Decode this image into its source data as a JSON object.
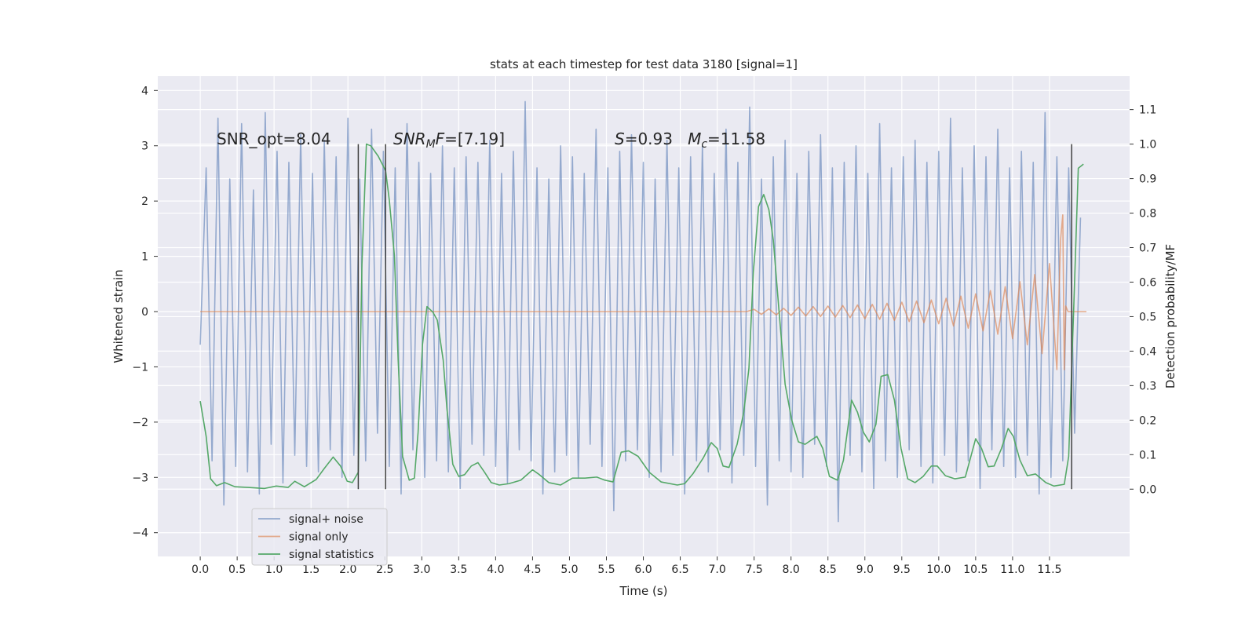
{
  "chart_data": {
    "type": "line",
    "title": "stats at each timestep for test data 3180 [signal=1]",
    "xlabel": "Time (s)",
    "ylabel": "Whitened strain",
    "y2label": "Detection probability/MF",
    "xlim": [
      -0.575,
      12.585
    ],
    "ylim": [
      -4.43,
      4.26
    ],
    "y2lim": [
      -0.195,
      1.197
    ],
    "xticks": [
      {
        "value": 0,
        "label": "0.0"
      },
      0.5,
      {
        "value": 1,
        "label": "1.0"
      },
      1.5,
      {
        "value": 2,
        "label": "2.0"
      },
      2.5,
      {
        "value": 3,
        "label": "3.0"
      },
      3.5,
      {
        "value": 4,
        "label": "4.0"
      },
      4.5,
      {
        "value": 5,
        "label": "5.0"
      },
      5.5,
      {
        "value": 6,
        "label": "6.0"
      },
      6.5,
      {
        "value": 7,
        "label": "7.0"
      },
      7.5,
      {
        "value": 8,
        "label": "8.0"
      },
      8.5,
      {
        "value": 9,
        "label": "9.0"
      },
      9.5,
      {
        "value": 10,
        "label": "10.0"
      },
      10.5,
      {
        "value": 11,
        "label": "11.0"
      },
      11.5
    ],
    "yticks": [
      {
        "value": -4,
        "label": "−4"
      },
      {
        "value": -3,
        "label": "−3"
      },
      {
        "value": -2,
        "label": "−2"
      },
      {
        "value": -1,
        "label": "−1"
      },
      0,
      1,
      2,
      3,
      4
    ],
    "y2ticks": [
      {
        "value": 0,
        "label": "0.0"
      },
      0.1,
      0.2,
      0.3,
      0.4,
      0.5,
      0.6,
      0.7,
      0.8,
      0.9,
      {
        "value": 1,
        "label": "1.0"
      },
      1.1
    ],
    "grid": true,
    "legend": "lower left",
    "annotations": [
      [
        {
          "text": "SNR_opt=8.04"
        }
      ],
      [
        {
          "text": "SNR",
          "style": "italic"
        },
        {
          "text": "M",
          "style": "italic-sub"
        },
        {
          "text": "F",
          "style": "italic"
        },
        {
          "text": "=[7.19]"
        }
      ],
      [
        {
          "text": "S",
          "style": "italic"
        },
        {
          "text": "=0.93   "
        },
        {
          "text": "M",
          "style": "italic"
        },
        {
          "text": "c",
          "style": "italic-sub"
        },
        {
          "text": "=11.58"
        }
      ]
    ],
    "vlines": {
      "x": [
        2.14,
        2.51,
        11.8
      ],
      "ymin": 0,
      "ymax": 1,
      "axis": "y2",
      "color": "#404040"
    },
    "series": [
      {
        "name": "signal+ noise",
        "color": "#4c72b0",
        "alpha": 0.55,
        "x": [
          0.0,
          0.08,
          0.16,
          0.24,
          0.32,
          0.4,
          0.48,
          0.56,
          0.64,
          0.72,
          0.8,
          0.88,
          0.96,
          1.04,
          1.12,
          1.2,
          1.28,
          1.36,
          1.44,
          1.52,
          1.6,
          1.68,
          1.76,
          1.84,
          1.92,
          2.0,
          2.08,
          2.16,
          2.24,
          2.32,
          2.4,
          2.48,
          2.56,
          2.64,
          2.72,
          2.8,
          2.88,
          2.96,
          3.04,
          3.12,
          3.2,
          3.28,
          3.36,
          3.44,
          3.52,
          3.6,
          3.68,
          3.76,
          3.84,
          3.92,
          4.0,
          4.08,
          4.16,
          4.24,
          4.32,
          4.4,
          4.48,
          4.56,
          4.64,
          4.72,
          4.8,
          4.88,
          4.96,
          5.04,
          5.12,
          5.2,
          5.28,
          5.36,
          5.44,
          5.52,
          5.6,
          5.68,
          5.76,
          5.84,
          5.92,
          6.0,
          6.08,
          6.16,
          6.24,
          6.32,
          6.4,
          6.48,
          6.56,
          6.64,
          6.72,
          6.8,
          6.88,
          6.96,
          7.04,
          7.12,
          7.2,
          7.28,
          7.36,
          7.44,
          7.52,
          7.6,
          7.68,
          7.76,
          7.84,
          7.92,
          8.0,
          8.08,
          8.16,
          8.24,
          8.32,
          8.4,
          8.48,
          8.56,
          8.64,
          8.72,
          8.8,
          8.88,
          8.96,
          9.04,
          9.12,
          9.2,
          9.28,
          9.36,
          9.44,
          9.52,
          9.6,
          9.68,
          9.76,
          9.84,
          9.92,
          10.0,
          10.08,
          10.16,
          10.24,
          10.32,
          10.4,
          10.48,
          10.56,
          10.64,
          10.72,
          10.8,
          10.88,
          10.96,
          11.04,
          11.12,
          11.2,
          11.28,
          11.36,
          11.44,
          11.52,
          11.6,
          11.68,
          11.76,
          11.84,
          11.92
        ],
        "values": [
          -0.6,
          2.6,
          -2.7,
          3.5,
          -3.5,
          2.4,
          -2.8,
          3.4,
          -2.9,
          2.2,
          -3.3,
          3.6,
          -2.4,
          2.9,
          -3.1,
          2.7,
          -2.6,
          3.2,
          -2.8,
          2.5,
          -2.9,
          3.1,
          -2.5,
          2.8,
          -3.0,
          3.5,
          -2.6,
          2.4,
          -2.7,
          3.3,
          -2.2,
          2.9,
          -2.8,
          2.6,
          -3.3,
          3.4,
          -2.5,
          2.7,
          -3.0,
          2.5,
          -2.7,
          3.0,
          -2.9,
          2.6,
          -3.2,
          2.8,
          -2.4,
          2.7,
          -2.6,
          3.1,
          -2.8,
          2.5,
          -3.1,
          2.9,
          -2.5,
          3.8,
          -2.7,
          2.6,
          -3.3,
          2.4,
          -2.9,
          3.0,
          -2.6,
          2.8,
          -3.0,
          2.5,
          -2.4,
          3.3,
          -2.8,
          2.6,
          -3.6,
          2.9,
          -2.7,
          3.2,
          -2.5,
          2.7,
          -3.0,
          2.4,
          -2.9,
          3.1,
          -2.6,
          2.6,
          -3.3,
          2.8,
          -2.7,
          3.0,
          -2.9,
          2.5,
          -2.5,
          3.3,
          -3.1,
          2.7,
          -2.6,
          3.7,
          -2.8,
          2.4,
          -3.5,
          2.8,
          -2.7,
          3.1,
          -2.9,
          2.5,
          -3.0,
          2.9,
          -2.4,
          3.2,
          -2.8,
          2.6,
          -3.8,
          2.7,
          -2.6,
          3.0,
          -2.9,
          2.5,
          -3.2,
          3.4,
          -2.7,
          2.6,
          -3.0,
          2.8,
          -2.5,
          3.1,
          -2.8,
          2.7,
          -3.1,
          2.9,
          -2.6,
          3.5,
          -2.9,
          2.6,
          -2.7,
          3.0,
          -3.2,
          2.8,
          -2.5,
          3.3,
          -2.8,
          2.6,
          -3.0,
          2.9,
          -2.6,
          2.7,
          -3.3,
          3.6,
          -3.0,
          2.8,
          -2.7,
          2.6,
          -2.2,
          1.7
        ]
      },
      {
        "name": "signal only",
        "color": "#dd8452",
        "alpha": 0.65,
        "x": [
          0.0,
          7.4,
          7.5,
          7.6,
          7.7,
          7.8,
          7.9,
          8.0,
          8.1,
          8.2,
          8.3,
          8.4,
          8.5,
          8.6,
          8.7,
          8.8,
          8.9,
          9.0,
          9.1,
          9.2,
          9.3,
          9.4,
          9.5,
          9.6,
          9.7,
          9.8,
          9.9,
          10.0,
          10.1,
          10.2,
          10.3,
          10.4,
          10.5,
          10.6,
          10.7,
          10.8,
          10.9,
          11.0,
          11.1,
          11.2,
          11.3,
          11.4,
          11.5,
          11.6,
          11.65,
          11.68,
          11.7,
          11.72,
          11.75,
          12.0
        ],
        "values": [
          0,
          0,
          0.04,
          -0.05,
          0.05,
          -0.06,
          0.06,
          -0.07,
          0.08,
          -0.08,
          0.09,
          -0.09,
          0.1,
          -0.1,
          0.11,
          -0.11,
          0.12,
          -0.13,
          0.13,
          -0.14,
          0.15,
          -0.16,
          0.17,
          -0.18,
          0.19,
          -0.2,
          0.21,
          -0.22,
          0.24,
          -0.26,
          0.28,
          -0.3,
          0.32,
          -0.35,
          0.38,
          -0.41,
          0.45,
          -0.49,
          0.54,
          -0.6,
          0.67,
          -0.76,
          0.87,
          -1.05,
          1.3,
          1.75,
          -1.05,
          0.1,
          0,
          0
        ]
      },
      {
        "name": "signal statistics",
        "color": "#55a868",
        "alpha": 1,
        "axis": "y2",
        "x": [
          0,
          0.08,
          0.14,
          0.22,
          0.33,
          0.47,
          0.65,
          0.87,
          1.03,
          1.19,
          1.28,
          1.41,
          1.57,
          1.68,
          1.8,
          1.9,
          1.99,
          2.06,
          2.14,
          2.19,
          2.25,
          2.31,
          2.41,
          2.51,
          2.56,
          2.63,
          2.68,
          2.74,
          2.83,
          2.9,
          2.95,
          3.01,
          3.07,
          3.15,
          3.21,
          3.29,
          3.34,
          3.42,
          3.5,
          3.58,
          3.67,
          3.76,
          3.85,
          3.94,
          4.05,
          4.18,
          4.34,
          4.5,
          4.58,
          4.72,
          4.88,
          5.04,
          5.21,
          5.37,
          5.48,
          5.59,
          5.7,
          5.8,
          5.93,
          6.08,
          6.24,
          6.46,
          6.56,
          6.67,
          6.81,
          6.92,
          7.0,
          7.08,
          7.16,
          7.27,
          7.36,
          7.43,
          7.49,
          7.56,
          7.63,
          7.7,
          7.76,
          7.83,
          7.92,
          8.01,
          8.1,
          8.19,
          8.3,
          8.35,
          8.43,
          8.52,
          8.63,
          8.71,
          8.82,
          8.9,
          8.98,
          9.06,
          9.15,
          9.22,
          9.31,
          9.4,
          9.49,
          9.58,
          9.68,
          9.79,
          9.9,
          9.98,
          10.09,
          10.22,
          10.36,
          10.5,
          10.58,
          10.67,
          10.75,
          10.85,
          10.94,
          11.01,
          11.1,
          11.2,
          11.31,
          11.45,
          11.56,
          11.7,
          11.76,
          11.83,
          11.89,
          11.96
        ],
        "values": [
          0.255,
          0.153,
          0.03,
          0.01,
          0.019,
          0.007,
          0.005,
          0.002,
          0.009,
          0.005,
          0.023,
          0.007,
          0.028,
          0.06,
          0.093,
          0.067,
          0.023,
          0.019,
          0.049,
          0.652,
          1.0,
          0.995,
          0.965,
          0.923,
          0.838,
          0.675,
          0.374,
          0.095,
          0.026,
          0.032,
          0.165,
          0.42,
          0.529,
          0.513,
          0.49,
          0.374,
          0.234,
          0.072,
          0.037,
          0.042,
          0.067,
          0.077,
          0.049,
          0.019,
          0.012,
          0.016,
          0.026,
          0.056,
          0.044,
          0.019,
          0.012,
          0.032,
          0.032,
          0.035,
          0.026,
          0.021,
          0.107,
          0.111,
          0.095,
          0.049,
          0.021,
          0.012,
          0.016,
          0.044,
          0.09,
          0.135,
          0.118,
          0.067,
          0.063,
          0.13,
          0.223,
          0.35,
          0.629,
          0.819,
          0.854,
          0.81,
          0.722,
          0.536,
          0.304,
          0.2,
          0.137,
          0.13,
          0.146,
          0.153,
          0.118,
          0.037,
          0.026,
          0.084,
          0.258,
          0.223,
          0.165,
          0.137,
          0.188,
          0.327,
          0.332,
          0.258,
          0.118,
          0.03,
          0.019,
          0.037,
          0.067,
          0.067,
          0.039,
          0.03,
          0.035,
          0.146,
          0.118,
          0.065,
          0.067,
          0.118,
          0.176,
          0.153,
          0.084,
          0.039,
          0.044,
          0.019,
          0.009,
          0.014,
          0.095,
          0.536,
          0.93,
          0.942
        ]
      }
    ]
  }
}
